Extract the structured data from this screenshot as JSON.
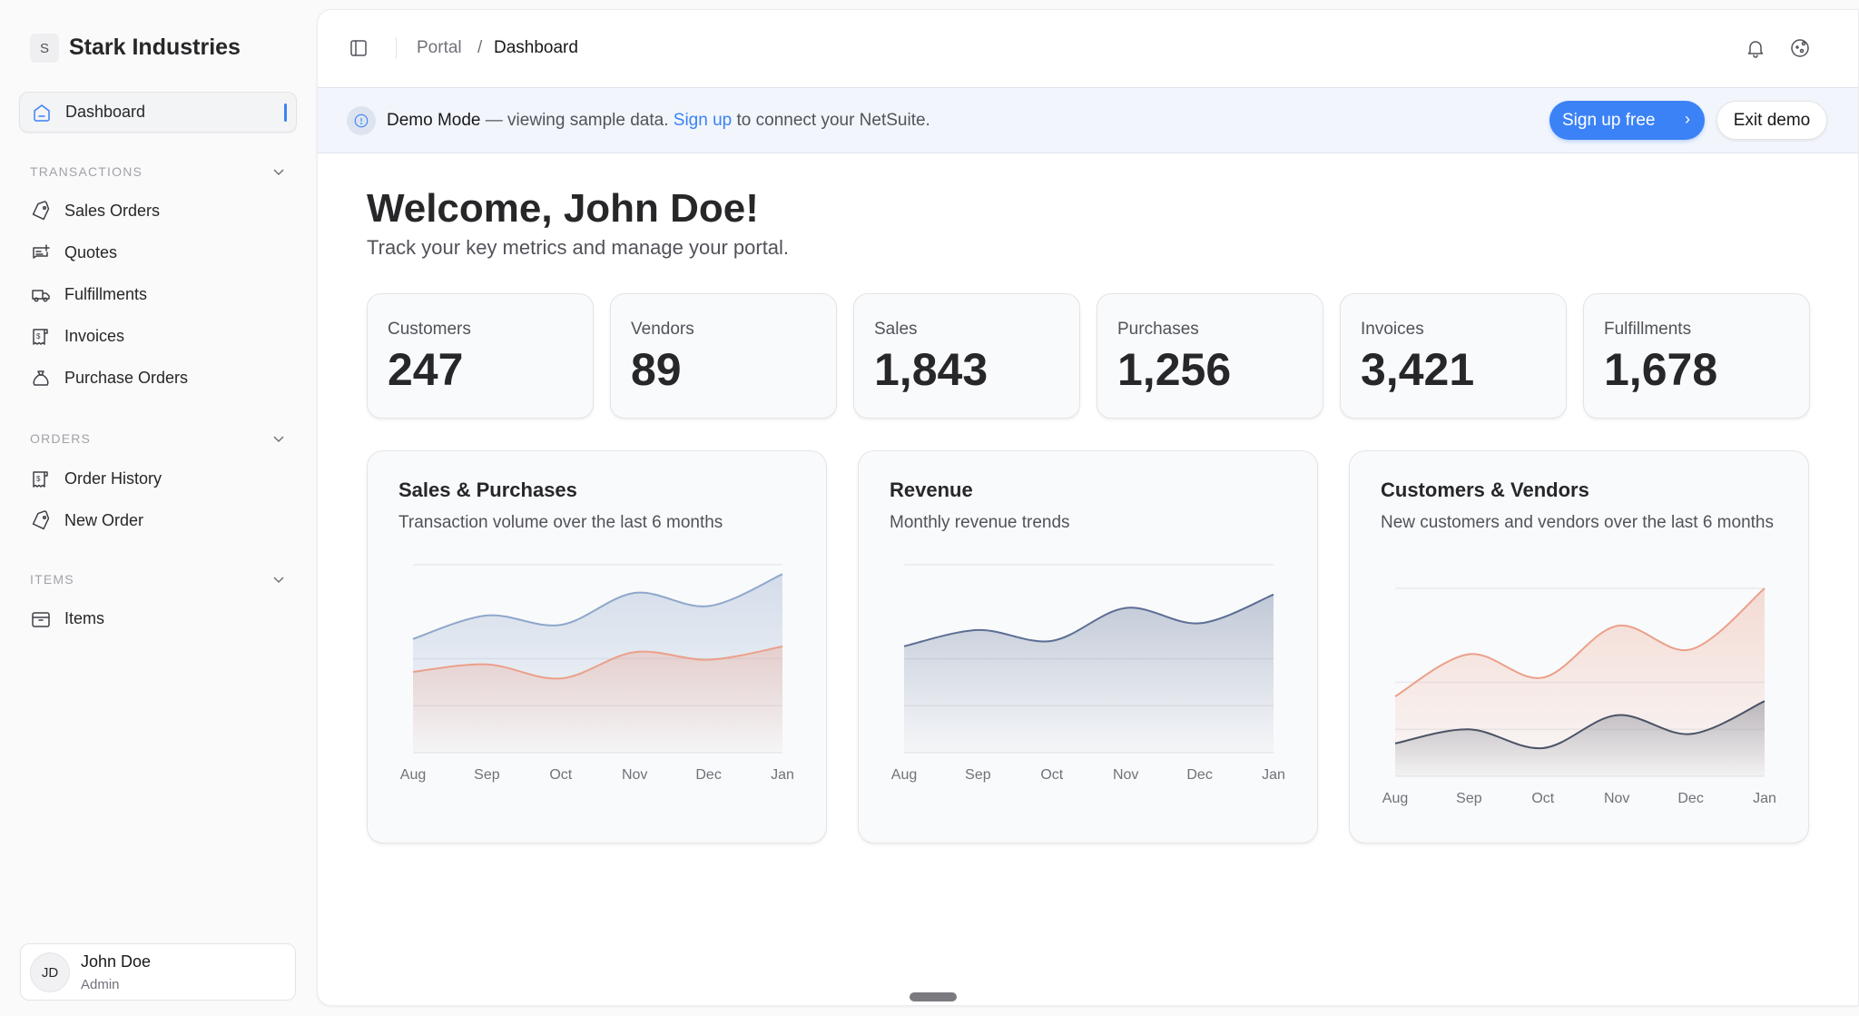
{
  "sidebar": {
    "logo_letter": "S",
    "brand": "Stark Industries",
    "dashboard": "Dashboard",
    "sections": [
      {
        "title": "TRANSACTIONS",
        "items": [
          {
            "label": "Sales Orders",
            "icon": "tag-icon"
          },
          {
            "label": "Quotes",
            "icon": "message-plus-icon"
          },
          {
            "label": "Fulfillments",
            "icon": "truck-icon"
          },
          {
            "label": "Invoices",
            "icon": "receipt-icon"
          },
          {
            "label": "Purchase Orders",
            "icon": "money-bag-icon"
          }
        ]
      },
      {
        "title": "ORDERS",
        "items": [
          {
            "label": "Order History",
            "icon": "receipt-icon"
          },
          {
            "label": "New Order",
            "icon": "tag-icon"
          }
        ]
      },
      {
        "title": "ITEMS",
        "items": [
          {
            "label": "Items",
            "icon": "box-icon"
          }
        ]
      }
    ],
    "user": {
      "initials": "JD",
      "name": "John Doe",
      "role": "Admin"
    }
  },
  "header": {
    "breadcrumb": [
      "Portal",
      "Dashboard"
    ],
    "separator": "/"
  },
  "banner": {
    "mode": "Demo Mode",
    "text1": " — viewing sample data. ",
    "link": "Sign up",
    "text2": " to connect your NetSuite.",
    "signup_button": "Sign up free",
    "exit_button": "Exit demo"
  },
  "welcome": {
    "title": "Welcome, John Doe!",
    "subtitle": "Track your key metrics and manage your portal."
  },
  "stats": [
    {
      "label": "Customers",
      "value": "247"
    },
    {
      "label": "Vendors",
      "value": "89"
    },
    {
      "label": "Sales",
      "value": "1,843"
    },
    {
      "label": "Purchases",
      "value": "1,256"
    },
    {
      "label": "Invoices",
      "value": "3,421"
    },
    {
      "label": "Fulfillments",
      "value": "1,678"
    }
  ],
  "colors": {
    "accent": "#3b82f6",
    "blue_series": "#8fa7cb",
    "orange_series": "#eba08a",
    "slate_series": "#5b6e94",
    "dark_series": "#4b5366"
  },
  "chart_data": [
    {
      "type": "area",
      "title": "Sales & Purchases",
      "subtitle": "Transaction volume over the last 6 months",
      "categories": [
        "Aug",
        "Sep",
        "Oct",
        "Nov",
        "Dec",
        "Jan"
      ],
      "ylim": [
        0,
        200
      ],
      "grid": [
        0,
        50,
        100,
        200
      ],
      "series": [
        {
          "name": "Sales",
          "values": [
            121,
            146,
            136,
            170,
            156,
            190
          ],
          "color": "#8fa7cb"
        },
        {
          "name": "Purchases",
          "values": [
            86,
            94,
            79,
            107,
            99,
            113
          ],
          "color": "#eba08a"
        }
      ]
    },
    {
      "type": "area",
      "title": "Revenue",
      "subtitle": "Monthly revenue trends",
      "categories": [
        "Aug",
        "Sep",
        "Oct",
        "Nov",
        "Dec",
        "Jan"
      ],
      "ylim": [
        0,
        80000
      ],
      "grid": [
        0,
        20000,
        40000,
        80000
      ],
      "series": [
        {
          "name": "Revenue",
          "values": [
            45300,
            52200,
            47600,
            61600,
            55100,
            67300
          ],
          "color": "#5b6e94"
        }
      ]
    },
    {
      "type": "area",
      "title": "Customers & Vendors",
      "subtitle": "New customers and vendors over the last 6 months",
      "categories": [
        "Aug",
        "Sep",
        "Oct",
        "Nov",
        "Dec",
        "Jan"
      ],
      "ylim": [
        0,
        40
      ],
      "grid": [
        0,
        10,
        20,
        40
      ],
      "series": [
        {
          "name": "Customers",
          "values": [
            17,
            26,
            21,
            32,
            27,
            40
          ],
          "color": "#eba08a"
        },
        {
          "name": "Vendors",
          "values": [
            7,
            10,
            6,
            13,
            9,
            16
          ],
          "color": "#4b5366"
        }
      ]
    }
  ]
}
